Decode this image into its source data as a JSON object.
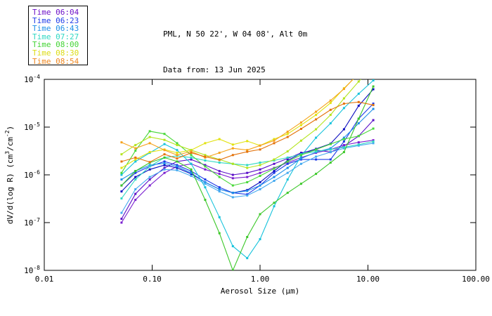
{
  "header": {
    "station_line": "PML, N 50 22', W 04 08', Alt 0m",
    "date_line": "Data from: 13 Jun 2025"
  },
  "legend": {
    "items": [
      {
        "label": "Time 06:04",
        "color": "#6E12C8"
      },
      {
        "label": "Time 06:23",
        "color": "#1F3BE8"
      },
      {
        "label": "Time 06:43",
        "color": "#1E8FE8"
      },
      {
        "label": "Time 07:27",
        "color": "#2FD8C3"
      },
      {
        "label": "Time 08:00",
        "color": "#44D434"
      },
      {
        "label": "Time 08:30",
        "color": "#DCDC14"
      },
      {
        "label": "Time 08:54",
        "color": "#EE8822"
      }
    ]
  },
  "chart_data": {
    "type": "line",
    "title": "PML, N 50 22', W 04 08', Alt 0m",
    "subtitle": "Data from: 13 Jun 2025",
    "xlabel": "Aerosol Size (μm)",
    "ylabel_segments": [
      {
        "t": "dV/d(log R) (cm"
      },
      {
        "t": "3",
        "sup": true
      },
      {
        "t": "/cm"
      },
      {
        "t": "-2",
        "sup": true
      },
      {
        "t": ")"
      }
    ],
    "xscale": "log",
    "yscale": "log",
    "xlim": [
      0.01,
      100.0
    ],
    "ylim": [
      1e-08,
      0.0001
    ],
    "x_ticks": [
      {
        "value": 0.01,
        "label": "0.01"
      },
      {
        "value": 0.1,
        "label": "0.10"
      },
      {
        "value": 1.0,
        "label": "1.00"
      },
      {
        "value": 10.0,
        "label": "10.00"
      },
      {
        "value": 100.0,
        "label": "100.00"
      }
    ],
    "y_ticks": [
      {
        "value": 0.0001,
        "base": "10",
        "exp": "-4"
      },
      {
        "value": 1e-05,
        "base": "10",
        "exp": "-5"
      },
      {
        "value": 1e-06,
        "base": "10",
        "exp": "-6"
      },
      {
        "value": 1e-07,
        "base": "10",
        "exp": "-7"
      },
      {
        "value": 1e-08,
        "base": "10",
        "exp": "-8"
      }
    ],
    "grid": false,
    "legend_position": "top-left",
    "sizes_um": [
      0.052,
      0.07,
      0.095,
      0.13,
      0.17,
      0.23,
      0.31,
      0.42,
      0.56,
      0.76,
      1.0,
      1.35,
      1.8,
      2.4,
      3.3,
      4.5,
      6.0,
      8.2,
      11.2
    ],
    "series": [
      {
        "name": "time-0604-a",
        "time": "06:04",
        "color": "#5A0FC8",
        "values": [
          1.2e-07,
          4e-07,
          8e-07,
          1.4e-06,
          1.9e-06,
          2.1e-06,
          1.6e-06,
          1.2e-06,
          1e-06,
          1.1e-06,
          1.3e-06,
          1.7e-06,
          2.2e-06,
          2.9e-06,
          3.3e-06,
          3e-06,
          4e-06,
          6.5e-06,
          1.4e-05
        ]
      },
      {
        "name": "time-0604-b",
        "time": "06:04",
        "color": "#7A1FD0",
        "values": [
          1e-07,
          3e-07,
          6e-07,
          1.1e-06,
          1.5e-06,
          1.7e-06,
          1.3e-06,
          1.05e-06,
          8.5e-07,
          9e-07,
          1.1e-06,
          1.4e-06,
          1.8e-06,
          2.3e-06,
          2.9e-06,
          3.4e-06,
          4.2e-06,
          4.8e-06,
          5.3e-06
        ]
      },
      {
        "name": "time-0623-a",
        "time": "06:23",
        "color": "#1F3BE8",
        "values": [
          6e-07,
          1.1e-06,
          1.5e-06,
          1.9e-06,
          1.6e-06,
          1.2e-06,
          8e-07,
          5.5e-07,
          4.2e-07,
          3.9e-07,
          6e-07,
          1.1e-06,
          1.7e-06,
          2.1e-06,
          2.1e-06,
          2.1e-06,
          5e-06,
          1.5e-05,
          3.1e-05
        ]
      },
      {
        "name": "time-0623-b",
        "time": "06:23",
        "color": "#0D0DC0",
        "values": [
          4.5e-07,
          9e-07,
          1.3e-06,
          1.6e-06,
          1.4e-06,
          1.05e-06,
          7e-07,
          5e-07,
          4.2e-07,
          4.8e-07,
          7e-07,
          1.2e-06,
          2e-06,
          2.8e-06,
          3.5e-06,
          4.5e-06,
          9e-06,
          2.8e-05,
          6.2e-05
        ]
      },
      {
        "name": "time-0643-a",
        "time": "06:43",
        "color": "#1E8FE8",
        "values": [
          8e-07,
          1.2e-06,
          1.6e-06,
          1.75e-06,
          1.5e-06,
          1.1e-06,
          7e-07,
          5e-07,
          4.2e-07,
          4.6e-07,
          6e-07,
          9e-07,
          1.4e-06,
          2.2e-06,
          3e-06,
          3.6e-06,
          6e-06,
          1.2e-05,
          2.4e-05
        ]
      },
      {
        "name": "time-0643-b",
        "time": "06:43",
        "color": "#45AAF0",
        "values": [
          1.6e-07,
          5e-07,
          9e-07,
          1.3e-06,
          1.25e-06,
          9.5e-07,
          6.5e-07,
          4.5e-07,
          3.4e-07,
          3.7e-07,
          5e-07,
          7.5e-07,
          1.1e-06,
          1.7e-06,
          2.4e-06,
          3e-06,
          3.6e-06,
          4.1e-06,
          4.6e-06
        ]
      },
      {
        "name": "time-0727-a",
        "time": "07:27",
        "color": "#17C3DC",
        "values": [
          1e-06,
          1.9e-06,
          2.9e-06,
          4.4e-06,
          3.3e-06,
          1.7e-06,
          5.5e-07,
          1.3e-07,
          3.2e-08,
          1.8e-08,
          4.5e-08,
          2.2e-07,
          8e-07,
          2.5e-06,
          6e-06,
          1.2e-05,
          2.5e-05,
          5e-05,
          9.5e-05
        ]
      },
      {
        "name": "time-0727-b",
        "time": "07:27",
        "color": "#2FD8C3",
        "values": [
          3.2e-07,
          8e-07,
          1.5e-06,
          2.3e-06,
          2.5e-06,
          2.3e-06,
          2e-06,
          1.8e-06,
          1.7e-06,
          1.6e-06,
          1.8e-06,
          2e-06,
          2.3e-06,
          2.7e-06,
          3.1e-06,
          3.4e-06,
          3.8e-06,
          4.3e-06,
          5e-06
        ]
      },
      {
        "name": "time-0800-a",
        "time": "08:00",
        "color": "#3CC829",
        "values": [
          6e-07,
          1.2e-06,
          1.8e-06,
          2.3e-06,
          1.9e-06,
          1.3e-06,
          3e-07,
          6e-08,
          1e-08,
          5e-08,
          1.5e-07,
          2.6e-07,
          4.2e-07,
          6.5e-07,
          1.05e-06,
          1.8e-06,
          3e-06,
          1.5e-05,
          7.1e-05
        ]
      },
      {
        "name": "time-0800-b",
        "time": "08:00",
        "color": "#49D83A",
        "values": [
          1.1e-06,
          3.2e-06,
          8.2e-06,
          7.2e-06,
          4.6e-06,
          2.6e-06,
          1.5e-06,
          9e-07,
          6e-07,
          7e-07,
          9.5e-07,
          1.35e-06,
          1.9e-06,
          2.6e-06,
          3.4e-06,
          4.4e-06,
          5.6e-06,
          6.5e-06,
          9.3e-06
        ]
      },
      {
        "name": "time-0830-a",
        "time": "08:30",
        "color": "#E2E20E",
        "values": [
          1.4e-06,
          2.1e-06,
          3e-06,
          3.4e-06,
          2.9e-06,
          3.3e-06,
          4.6e-06,
          5.6e-06,
          4.3e-06,
          5.1e-06,
          4.1e-06,
          5.6e-06,
          7.2e-06,
          1.1e-05,
          1.8e-05,
          3.2e-05,
          6.5e-05,
          0.00013,
          0.00025
        ]
      },
      {
        "name": "time-0830-b",
        "time": "08:30",
        "color": "#B4E41E",
        "values": [
          2.7e-06,
          4.2e-06,
          6.2e-06,
          5.4e-06,
          4.2e-06,
          3.3e-06,
          2.6e-06,
          2.1e-06,
          1.7e-06,
          1.4e-06,
          1.6e-06,
          2.1e-06,
          3.1e-06,
          5.2e-06,
          9e-06,
          1.8e-05,
          4e-05,
          9e-05,
          0.00019
        ]
      },
      {
        "name": "time-0854-a",
        "time": "08:54",
        "color": "#F5A21B",
        "values": [
          4.8e-06,
          3.6e-06,
          4.6e-06,
          3.3e-06,
          2.6e-06,
          3.1e-06,
          2.3e-06,
          2.9e-06,
          3.6e-06,
          3.3e-06,
          4.1e-06,
          5.2e-06,
          8e-06,
          1.25e-05,
          2.1e-05,
          3.6e-05,
          6.3e-05,
          0.000135,
          0.00026
        ]
      },
      {
        "name": "time-0854-b",
        "time": "08:54",
        "color": "#E3720B",
        "values": [
          1.9e-06,
          2.3e-06,
          1.85e-06,
          2.7e-06,
          2.2e-06,
          2.9e-06,
          2.4e-06,
          2.05e-06,
          2.6e-06,
          3.05e-06,
          3.4e-06,
          4.6e-06,
          6.2e-06,
          9.2e-06,
          1.45e-05,
          2.3e-05,
          3.1e-05,
          3.35e-05,
          2.9e-05
        ]
      }
    ]
  }
}
